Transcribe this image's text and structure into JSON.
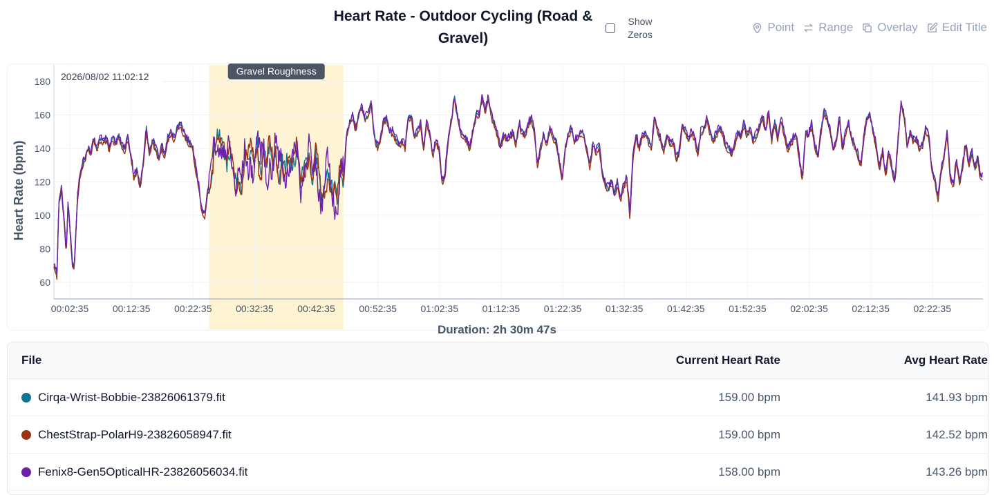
{
  "header": {
    "title": "Heart Rate - Outdoor Cycling (Road & Gravel)",
    "show_zeros_label": "Show Zeros",
    "tools": {
      "point": "Point",
      "range": "Range",
      "overlay": "Overlay",
      "edit_title": "Edit Title"
    }
  },
  "chart_data": {
    "type": "line",
    "ylabel": "Heart Rate (bpm)",
    "xlabel": "Duration: 2h 30m 47s",
    "ylim": [
      50,
      190
    ],
    "yticks": [
      60,
      80,
      100,
      120,
      140,
      160,
      180
    ],
    "xlim": [
      0,
      150.8
    ],
    "xticks": [
      {
        "m": 2.58,
        "label": "00:02:35"
      },
      {
        "m": 12.58,
        "label": "00:12:35"
      },
      {
        "m": 22.58,
        "label": "00:22:35"
      },
      {
        "m": 32.58,
        "label": "00:32:35"
      },
      {
        "m": 42.58,
        "label": "00:42:35"
      },
      {
        "m": 52.58,
        "label": "00:52:35"
      },
      {
        "m": 62.58,
        "label": "01:02:35"
      },
      {
        "m": 72.58,
        "label": "01:12:35"
      },
      {
        "m": 82.58,
        "label": "01:22:35"
      },
      {
        "m": 92.58,
        "label": "01:32:35"
      },
      {
        "m": 102.58,
        "label": "01:42:35"
      },
      {
        "m": 112.58,
        "label": "01:52:35"
      },
      {
        "m": 122.58,
        "label": "02:02:35"
      },
      {
        "m": 132.58,
        "label": "02:12:35"
      },
      {
        "m": 142.58,
        "label": "02:22:35"
      }
    ],
    "grid": true,
    "timestamp_label": "2026/08/02 11:02:12",
    "highlight": {
      "label": "Gravel Roughness",
      "x_start": 25.2,
      "x_end": 47.0,
      "color": "#fef3d2"
    },
    "series": [
      {
        "name": "Cirqa-Wrist-Bobbie-23826061379.fit",
        "color": "#0e7490",
        "current": "159.00 bpm",
        "avg": "141.93 bpm"
      },
      {
        "name": "ChestStrap-PolarH9-23826058947.fit",
        "color": "#9a3412",
        "current": "159.00 bpm",
        "avg": "142.52 bpm"
      },
      {
        "name": "Fenix8-Gen5OpticalHR-23826056034.fit",
        "color": "#6b21a8",
        "current": "158.00 bpm",
        "avg": "143.26 bpm"
      }
    ],
    "base_curve": [
      [
        0,
        70
      ],
      [
        0.5,
        64
      ],
      [
        0.8,
        108
      ],
      [
        1.2,
        116
      ],
      [
        1.6,
        100
      ],
      [
        2.0,
        78
      ],
      [
        2.3,
        108
      ],
      [
        2.6,
        92
      ],
      [
        3.0,
        72
      ],
      [
        3.3,
        68
      ],
      [
        3.8,
        110
      ],
      [
        4.3,
        126
      ],
      [
        5.0,
        134
      ],
      [
        5.5,
        140
      ],
      [
        6.0,
        138
      ],
      [
        6.5,
        146
      ],
      [
        7.0,
        140
      ],
      [
        7.5,
        146
      ],
      [
        8.0,
        144
      ],
      [
        8.5,
        146
      ],
      [
        9.0,
        140
      ],
      [
        9.5,
        147
      ],
      [
        10.0,
        143
      ],
      [
        10.5,
        148
      ],
      [
        11.0,
        142
      ],
      [
        11.5,
        139
      ],
      [
        12.0,
        146
      ],
      [
        12.5,
        136
      ],
      [
        13.0,
        122
      ],
      [
        13.5,
        128
      ],
      [
        14.0,
        116
      ],
      [
        14.5,
        131
      ],
      [
        15.0,
        152
      ],
      [
        15.5,
        136
      ],
      [
        16.0,
        145
      ],
      [
        16.5,
        140
      ],
      [
        17.0,
        134
      ],
      [
        17.5,
        141
      ],
      [
        18.0,
        136
      ],
      [
        18.5,
        146
      ],
      [
        19.0,
        150
      ],
      [
        19.5,
        146
      ],
      [
        20.0,
        152
      ],
      [
        20.5,
        155
      ],
      [
        21.0,
        150
      ],
      [
        21.5,
        146
      ],
      [
        22.0,
        143
      ],
      [
        22.5,
        141
      ],
      [
        23.0,
        128
      ],
      [
        23.5,
        118
      ],
      [
        24.0,
        103
      ],
      [
        24.5,
        100
      ],
      [
        25.0,
        115
      ],
      [
        25.5,
        122
      ],
      [
        26.0,
        140
      ],
      [
        26.5,
        150
      ],
      [
        27.0,
        145
      ],
      [
        27.5,
        142
      ],
      [
        28.0,
        128
      ],
      [
        28.5,
        138
      ],
      [
        29.0,
        131
      ],
      [
        29.5,
        120
      ],
      [
        30.0,
        126
      ],
      [
        30.5,
        115
      ],
      [
        31.0,
        136
      ],
      [
        31.5,
        132
      ],
      [
        32.0,
        140
      ],
      [
        32.5,
        128
      ],
      [
        33.0,
        142
      ],
      [
        33.5,
        122
      ],
      [
        34.0,
        140
      ],
      [
        34.5,
        130
      ],
      [
        35.0,
        143
      ],
      [
        35.5,
        128
      ],
      [
        36.0,
        136
      ],
      [
        36.5,
        120
      ],
      [
        37.0,
        134
      ],
      [
        37.5,
        128
      ],
      [
        38.0,
        136
      ],
      [
        38.5,
        130
      ],
      [
        39.0,
        130
      ],
      [
        39.5,
        140
      ],
      [
        40.0,
        118
      ],
      [
        40.5,
        128
      ],
      [
        41.0,
        133
      ],
      [
        41.5,
        137
      ],
      [
        42.0,
        117
      ],
      [
        42.5,
        138
      ],
      [
        43.0,
        125
      ],
      [
        43.5,
        106
      ],
      [
        44.0,
        116
      ],
      [
        44.5,
        126
      ],
      [
        45.0,
        116
      ],
      [
        45.5,
        118
      ],
      [
        46.0,
        108
      ],
      [
        46.5,
        128
      ],
      [
        47.0,
        118
      ],
      [
        47.5,
        148
      ],
      [
        48.0,
        155
      ],
      [
        48.5,
        160
      ],
      [
        49.0,
        150
      ],
      [
        49.5,
        162
      ],
      [
        50.0,
        165
      ],
      [
        50.5,
        158
      ],
      [
        51.0,
        160
      ],
      [
        51.5,
        168
      ],
      [
        52.0,
        148
      ],
      [
        52.5,
        141
      ],
      [
        53.0,
        146
      ],
      [
        53.5,
        156
      ],
      [
        54.0,
        158
      ],
      [
        54.5,
        150
      ],
      [
        55.0,
        150
      ],
      [
        55.5,
        146
      ],
      [
        56.0,
        141
      ],
      [
        56.5,
        145
      ],
      [
        57.0,
        141
      ],
      [
        57.5,
        158
      ],
      [
        58.0,
        160
      ],
      [
        58.5,
        147
      ],
      [
        59.0,
        150
      ],
      [
        59.5,
        155
      ],
      [
        60.0,
        140
      ],
      [
        60.5,
        156
      ],
      [
        61.0,
        150
      ],
      [
        61.5,
        135
      ],
      [
        62.0,
        145
      ],
      [
        62.5,
        140
      ],
      [
        63.0,
        120
      ],
      [
        63.5,
        125
      ],
      [
        64.0,
        146
      ],
      [
        64.5,
        156
      ],
      [
        65.0,
        171
      ],
      [
        65.5,
        160
      ],
      [
        66.0,
        150
      ],
      [
        66.5,
        148
      ],
      [
        67.0,
        145
      ],
      [
        67.5,
        140
      ],
      [
        68.0,
        150
      ],
      [
        68.5,
        160
      ],
      [
        69.0,
        160
      ],
      [
        69.5,
        171
      ],
      [
        70.0,
        162
      ],
      [
        70.5,
        170
      ],
      [
        71.0,
        160
      ],
      [
        71.5,
        154
      ],
      [
        72.0,
        148
      ],
      [
        72.5,
        141
      ],
      [
        73.0,
        148
      ],
      [
        73.5,
        145
      ],
      [
        74.0,
        147
      ],
      [
        74.5,
        149
      ],
      [
        75.0,
        143
      ],
      [
        75.5,
        155
      ],
      [
        76.0,
        150
      ],
      [
        76.5,
        148
      ],
      [
        77.0,
        155
      ],
      [
        77.5,
        158
      ],
      [
        78.0,
        150
      ],
      [
        78.5,
        130
      ],
      [
        79.0,
        140
      ],
      [
        79.5,
        148
      ],
      [
        80.0,
        143
      ],
      [
        80.5,
        152
      ],
      [
        81.0,
        147
      ],
      [
        81.5,
        144
      ],
      [
        82.0,
        133
      ],
      [
        82.5,
        122
      ],
      [
        83.0,
        140
      ],
      [
        83.5,
        148
      ],
      [
        84.0,
        152
      ],
      [
        84.5,
        145
      ],
      [
        85.0,
        146
      ],
      [
        85.5,
        150
      ],
      [
        86.0,
        148
      ],
      [
        86.5,
        140
      ],
      [
        87.0,
        130
      ],
      [
        87.5,
        143
      ],
      [
        88.0,
        138
      ],
      [
        88.5,
        142
      ],
      [
        89.0,
        126
      ],
      [
        89.5,
        118
      ],
      [
        90.0,
        116
      ],
      [
        90.5,
        120
      ],
      [
        91.0,
        112
      ],
      [
        91.5,
        120
      ],
      [
        92.0,
        109
      ],
      [
        92.5,
        118
      ],
      [
        93.0,
        122
      ],
      [
        93.5,
        100
      ],
      [
        94.0,
        136
      ],
      [
        94.5,
        148
      ],
      [
        95.0,
        140
      ],
      [
        95.5,
        148
      ],
      [
        96.0,
        150
      ],
      [
        96.5,
        145
      ],
      [
        97.0,
        140
      ],
      [
        97.5,
        160
      ],
      [
        98.0,
        150
      ],
      [
        98.5,
        145
      ],
      [
        99.0,
        138
      ],
      [
        99.5,
        148
      ],
      [
        100.0,
        143
      ],
      [
        100.5,
        144
      ],
      [
        101.0,
        134
      ],
      [
        101.5,
        138
      ],
      [
        102.0,
        155
      ],
      [
        102.5,
        150
      ],
      [
        103.0,
        145
      ],
      [
        103.5,
        150
      ],
      [
        104.0,
        146
      ],
      [
        104.5,
        137
      ],
      [
        105.0,
        150
      ],
      [
        105.5,
        152
      ],
      [
        106.0,
        158
      ],
      [
        106.5,
        150
      ],
      [
        107.0,
        145
      ],
      [
        107.5,
        148
      ],
      [
        108.0,
        152
      ],
      [
        108.5,
        150
      ],
      [
        109.0,
        142
      ],
      [
        109.5,
        140
      ],
      [
        110.0,
        137
      ],
      [
        110.5,
        142
      ],
      [
        111.0,
        150
      ],
      [
        111.5,
        147
      ],
      [
        112.0,
        155
      ],
      [
        112.5,
        148
      ],
      [
        113.0,
        152
      ],
      [
        113.5,
        145
      ],
      [
        114.0,
        148
      ],
      [
        114.5,
        152
      ],
      [
        115.0,
        160
      ],
      [
        115.5,
        150
      ],
      [
        116.0,
        162
      ],
      [
        116.5,
        145
      ],
      [
        117.0,
        156
      ],
      [
        117.5,
        146
      ],
      [
        118.0,
        158
      ],
      [
        118.5,
        150
      ],
      [
        119.0,
        140
      ],
      [
        119.5,
        142
      ],
      [
        120.0,
        146
      ],
      [
        120.5,
        148
      ],
      [
        121.0,
        134
      ],
      [
        121.5,
        122
      ],
      [
        122.0,
        150
      ],
      [
        122.5,
        148
      ],
      [
        123.0,
        154
      ],
      [
        123.5,
        142
      ],
      [
        124.0,
        135
      ],
      [
        124.5,
        150
      ],
      [
        125.0,
        162
      ],
      [
        125.5,
        158
      ],
      [
        126.0,
        150
      ],
      [
        126.5,
        140
      ],
      [
        127.0,
        144
      ],
      [
        127.5,
        158
      ],
      [
        128.0,
        140
      ],
      [
        128.5,
        150
      ],
      [
        129.0,
        155
      ],
      [
        129.5,
        145
      ],
      [
        130.0,
        142
      ],
      [
        130.5,
        136
      ],
      [
        131.0,
        130
      ],
      [
        131.5,
        148
      ],
      [
        132.0,
        158
      ],
      [
        132.5,
        160
      ],
      [
        133.0,
        150
      ],
      [
        133.5,
        141
      ],
      [
        134.0,
        128
      ],
      [
        134.5,
        138
      ],
      [
        135.0,
        124
      ],
      [
        135.5,
        138
      ],
      [
        136.0,
        128
      ],
      [
        136.5,
        120
      ],
      [
        137.0,
        144
      ],
      [
        137.5,
        168
      ],
      [
        138.0,
        160
      ],
      [
        138.5,
        141
      ],
      [
        139.0,
        150
      ],
      [
        139.5,
        145
      ],
      [
        140.0,
        146
      ],
      [
        140.5,
        140
      ],
      [
        141.0,
        142
      ],
      [
        141.5,
        152
      ],
      [
        142.0,
        148
      ],
      [
        142.5,
        128
      ],
      [
        143.0,
        122
      ],
      [
        143.5,
        110
      ],
      [
        144.0,
        126
      ],
      [
        144.5,
        136
      ],
      [
        145.0,
        150
      ],
      [
        145.5,
        122
      ],
      [
        146.0,
        118
      ],
      [
        146.5,
        133
      ],
      [
        147.0,
        120
      ],
      [
        147.5,
        130
      ],
      [
        148.0,
        143
      ],
      [
        148.5,
        130
      ],
      [
        149.0,
        138
      ],
      [
        149.5,
        128
      ],
      [
        150.0,
        135
      ],
      [
        150.3,
        125
      ],
      [
        150.8,
        122
      ]
    ]
  },
  "table": {
    "headers": {
      "file": "File",
      "current": "Current Heart Rate",
      "avg": "Avg Heart Rate"
    },
    "rows": [
      {
        "file": "Cirqa-Wrist-Bobbie-23826061379.fit",
        "current": "159.00 bpm",
        "avg": "141.93 bpm",
        "color": "#0e7490"
      },
      {
        "file": "ChestStrap-PolarH9-23826058947.fit",
        "current": "159.00 bpm",
        "avg": "142.52 bpm",
        "color": "#9a3412"
      },
      {
        "file": "Fenix8-Gen5OpticalHR-23826056034.fit",
        "current": "158.00 bpm",
        "avg": "143.26 bpm",
        "color": "#6b21a8"
      }
    ]
  }
}
